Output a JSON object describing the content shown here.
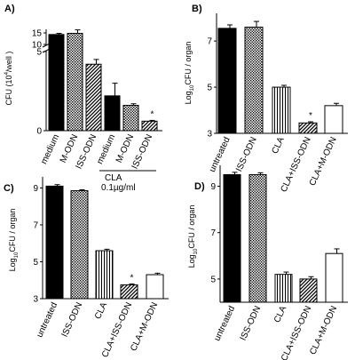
{
  "chart_data": [
    {
      "panel": "A)",
      "type": "bar",
      "ylabel": "CFU (10",
      "ylabel_sup": "4",
      "ylabel_end": "/well )",
      "axis_break": true,
      "lower_ylim": [
        0,
        5
      ],
      "upper_ylim": [
        10,
        15
      ],
      "yticks": [
        "0",
        "5",
        "10",
        "15"
      ],
      "categories": [
        "medium",
        "M-ODN",
        "ISS-ODN",
        "medium",
        "M-ODN",
        "ISS-ODN"
      ],
      "values": [
        14.3,
        14.8,
        4.2,
        2.2,
        1.6,
        0.6
      ],
      "errors": [
        0.5,
        1.5,
        0.3,
        0.8,
        0.1,
        0.05
      ],
      "patterns": [
        "solid",
        "dots",
        "diag",
        "solid",
        "dots",
        "diag"
      ],
      "group_label": "CLA",
      "group_sublabel": "0.1µg/ml",
      "annotations": [
        {
          "bar": 5,
          "text": "*"
        }
      ]
    },
    {
      "panel": "B)",
      "type": "bar",
      "ylabel": "Log",
      "ylabel_sub": "10",
      "ylabel_end": "CFU / organ",
      "ylim": [
        3,
        8.2
      ],
      "yticks": [
        "3",
        "5",
        "7"
      ],
      "categories": [
        "untreated",
        "ISS-ODN",
        "CLA",
        "CLA+ISS-ODN",
        "CLA+M-ODN"
      ],
      "values": [
        7.55,
        7.6,
        5.0,
        3.45,
        4.2
      ],
      "errors": [
        0.15,
        0.25,
        0.08,
        0.05,
        0.1
      ],
      "patterns": [
        "solid",
        "dots",
        "vert",
        "diag",
        "white"
      ],
      "annotations": [
        {
          "bar": 3,
          "text": "*"
        }
      ]
    },
    {
      "panel": "C)",
      "type": "bar",
      "ylabel": "Log",
      "ylabel_sub": "10",
      "ylabel_end": "CFU / organ",
      "ylim": [
        3,
        9.6
      ],
      "yticks": [
        "3",
        "5",
        "7",
        "9"
      ],
      "categories": [
        "untreated",
        "ISS-ODN",
        "CLA",
        "CLA+ISS-ODN",
        "CLA+M-ODN"
      ],
      "values": [
        9.1,
        8.85,
        5.6,
        3.75,
        4.3
      ],
      "errors": [
        0.08,
        0.05,
        0.08,
        0.05,
        0.08
      ],
      "patterns": [
        "solid",
        "dots",
        "vert",
        "diag",
        "white"
      ],
      "annotations": [
        {
          "bar": 3,
          "text": "*"
        }
      ]
    },
    {
      "panel": "D)",
      "type": "bar",
      "ylabel": "Log",
      "ylabel_sub": "10",
      "ylabel_end": "CFU / organ",
      "ylim": [
        4,
        9.9
      ],
      "yticks": [
        "5",
        "7",
        "9"
      ],
      "categories": [
        "untreated",
        "ISS-ODN",
        "CLA",
        "CLA+ISS-ODN",
        "CLA+M-ODN"
      ],
      "values": [
        9.5,
        9.5,
        5.2,
        5.0,
        6.1
      ],
      "errors": [
        0.1,
        0.08,
        0.1,
        0.1,
        0.2
      ],
      "patterns": [
        "solid",
        "dots",
        "vert",
        "diag",
        "white"
      ],
      "annotations": []
    }
  ]
}
